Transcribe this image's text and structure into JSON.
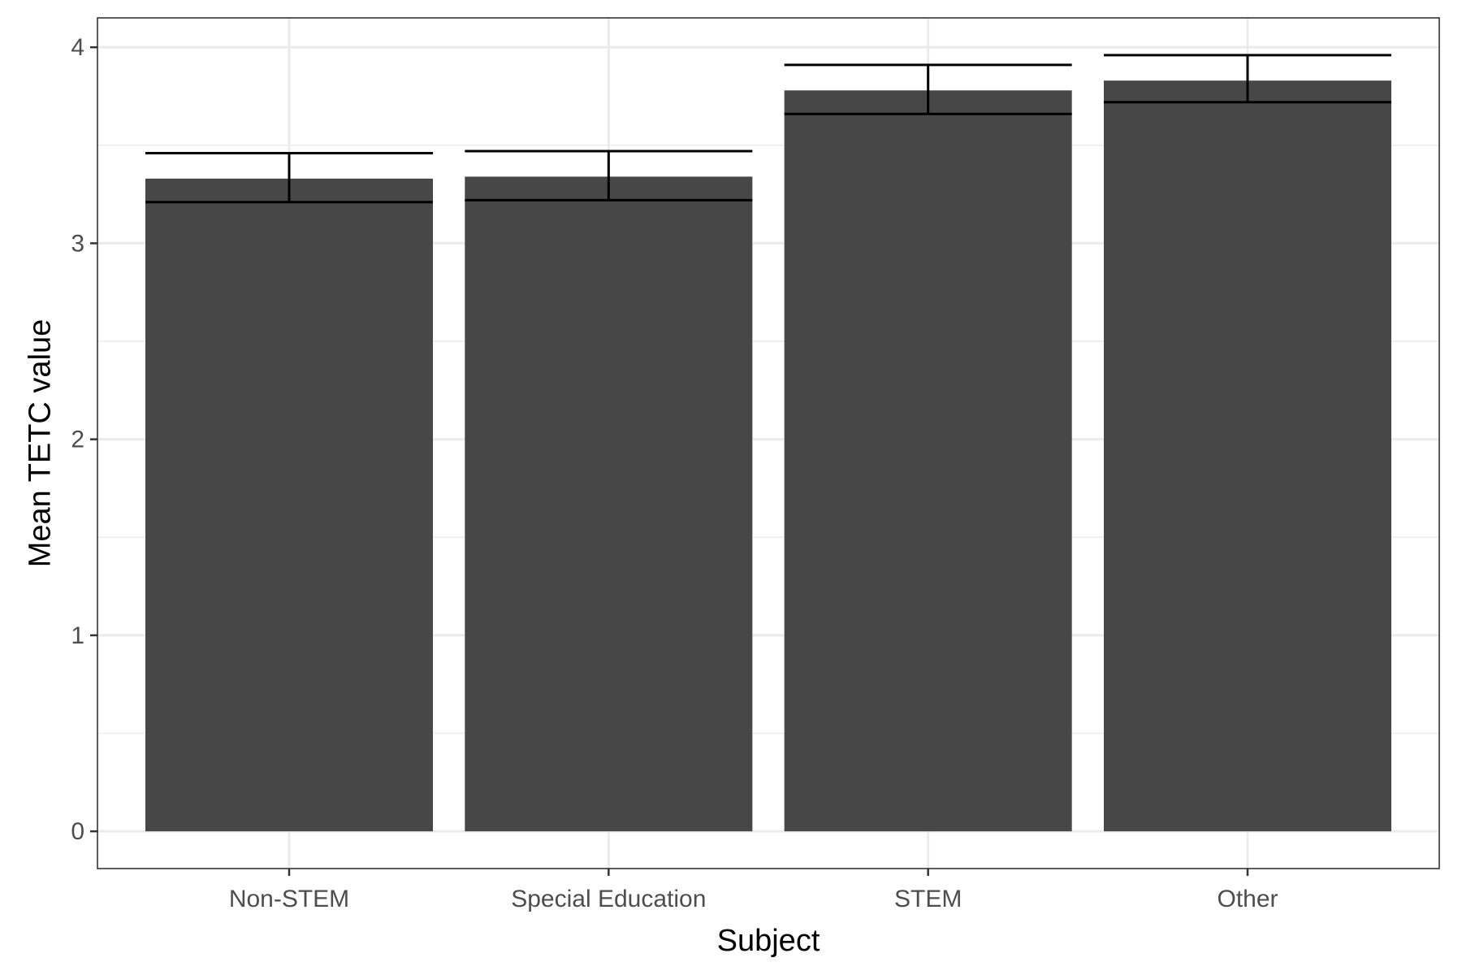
{
  "chart_data": {
    "type": "bar",
    "title": "",
    "xlabel": "Subject",
    "ylabel": "Mean TETC value",
    "categories": [
      "Non-STEM",
      "Special Education",
      "STEM",
      "Other"
    ],
    "values": [
      3.33,
      3.34,
      3.78,
      3.83
    ],
    "error_low": [
      3.21,
      3.22,
      3.66,
      3.72
    ],
    "error_high": [
      3.46,
      3.47,
      3.91,
      3.96
    ],
    "ylim": [
      -0.19,
      4.15
    ],
    "yticks": [
      0,
      1,
      2,
      3,
      4
    ],
    "grid": true,
    "colors": {
      "bar": "#474747",
      "errorbar": "#000000",
      "grid": "#ebebeb",
      "panel_border": "#333333",
      "tick_text": "#4d4d4d"
    }
  }
}
